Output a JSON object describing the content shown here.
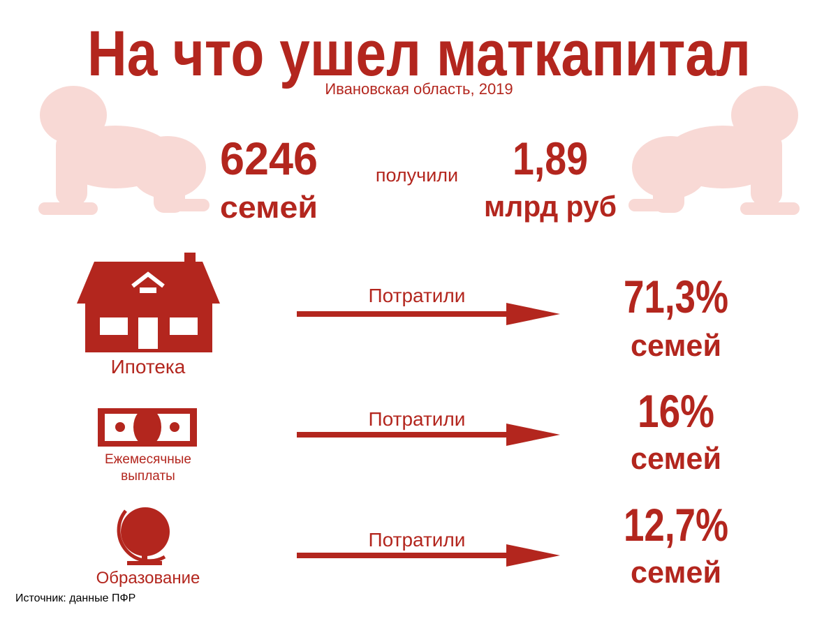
{
  "header": {
    "title": "На что ушел маткапитал",
    "subtitle": "Ивановская область, 2019"
  },
  "summary": {
    "families_value": "6246",
    "families_unit": "семей",
    "verb": "получили",
    "amount_value": "1,89",
    "amount_unit": "млрд руб"
  },
  "rows": [
    {
      "label": [
        "Ипотека"
      ],
      "action": "Потратили",
      "share": "71,3%",
      "unit": "семей"
    },
    {
      "label": [
        "Ежемесячные",
        "выплаты"
      ],
      "action": "Потратили",
      "share": "16%",
      "unit": "семей"
    },
    {
      "label": [
        "Образование"
      ],
      "action": "Потратили",
      "share": "12,7%",
      "unit": "семей"
    }
  ],
  "source": "Источник: данные ПФР"
}
